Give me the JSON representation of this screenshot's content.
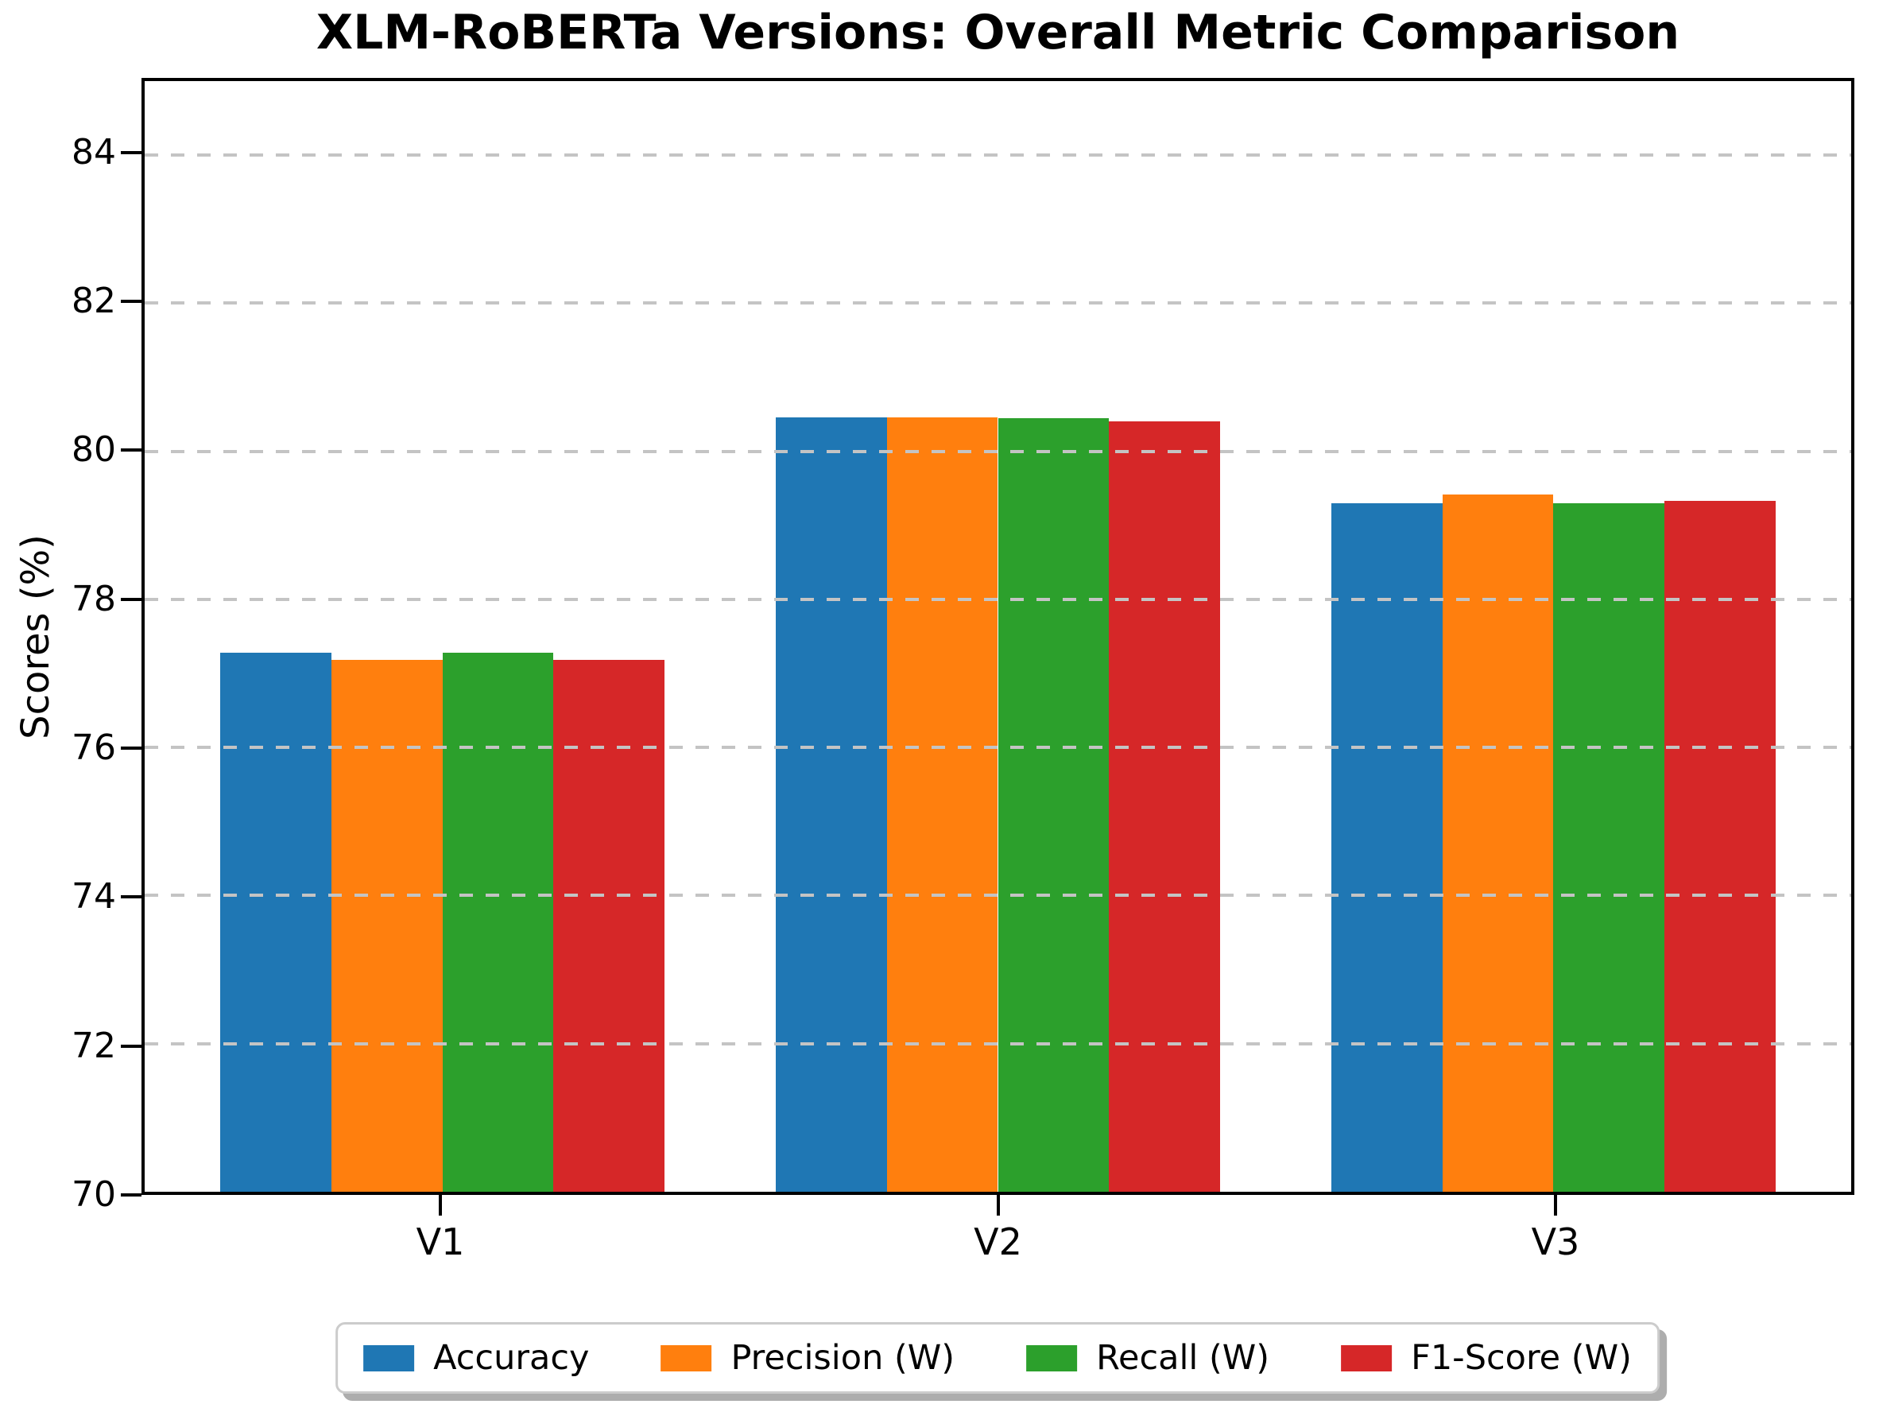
{
  "figure": {
    "background": "#ffffff"
  },
  "chart_data": {
    "type": "bar",
    "title": "XLM-RoBERTa Versions: Overall Metric Comparison",
    "ylabel": "Scores (%)",
    "xlabel": "",
    "categories": [
      "V1",
      "V2",
      "V3"
    ],
    "series": [
      {
        "name": "Accuracy",
        "color": "#1f77b4",
        "values": [
          77.28,
          80.46,
          79.3
        ]
      },
      {
        "name": "Precision (W)",
        "color": "#ff7f0e",
        "values": [
          77.18,
          80.46,
          79.42
        ]
      },
      {
        "name": "Recall (W)",
        "color": "#2ca02c",
        "values": [
          77.28,
          80.45,
          79.3
        ]
      },
      {
        "name": "F1-Score (W)",
        "color": "#d62728",
        "values": [
          77.18,
          80.4,
          79.33
        ]
      }
    ],
    "ylim": [
      70,
      85
    ],
    "yticks": [
      70,
      72,
      74,
      76,
      78,
      80,
      82,
      84
    ],
    "grid": true,
    "grid_color": "#c4c4c4",
    "legend_position": "bottom"
  }
}
